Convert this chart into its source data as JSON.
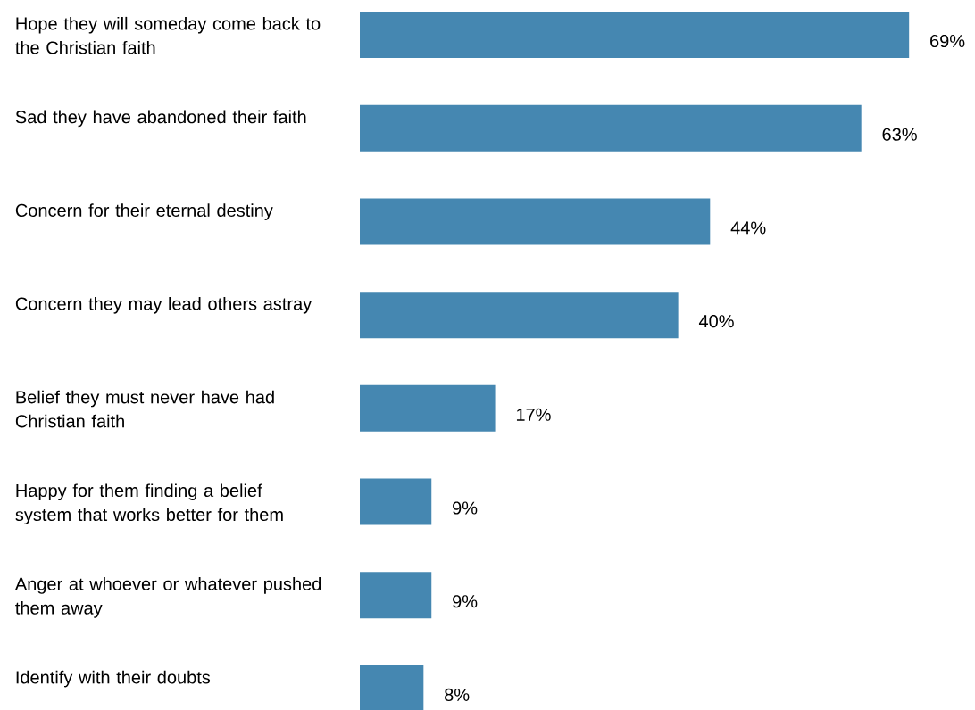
{
  "chart_data": {
    "type": "bar",
    "orientation": "horizontal",
    "categories": [
      "Hope they will someday come back to the Christian faith",
      "Sad they have abandoned their faith",
      "Concern for their eternal destiny",
      "Concern they may lead others astray",
      "Belief they must never have had Christian faith",
      "Happy for them finding a belief system that works better for them",
      "Anger at whoever or whatever pushed them away",
      "Identify with their doubts"
    ],
    "values": [
      69,
      63,
      44,
      40,
      17,
      9,
      9,
      8
    ],
    "value_labels": [
      "69%",
      "63%",
      "44%",
      "40%",
      "17%",
      "9%",
      "9%",
      "8%"
    ],
    "color": "#4587b1"
  }
}
